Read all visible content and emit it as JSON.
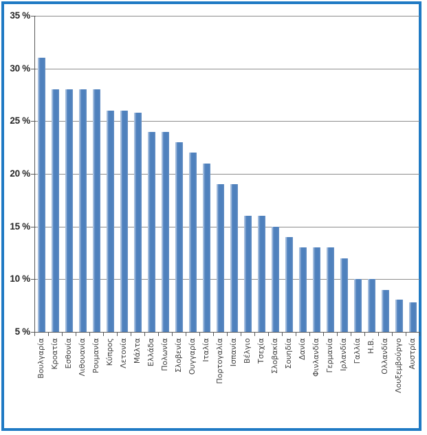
{
  "frame": {
    "border_color": "#1F7AC4",
    "background_color": "#FFFFFF"
  },
  "chart_data": {
    "type": "bar",
    "title": "",
    "xlabel": "",
    "ylabel": "",
    "unit": "%",
    "categories": [
      "Βουλγαρία",
      "Κροατία",
      "Εσθονία",
      "Λιθουανία",
      "Ρουμανία",
      "Κύπρος",
      "Λετονία",
      "Μάλτα",
      "Ελλάδα",
      "Πολωνία",
      "Σλοβενία",
      "Ουγγαρία",
      "Ιταλία",
      "Πορτογαλία",
      "Ισπανία",
      "Βέλγιο",
      "Τσεχία",
      "Σλοβακία",
      "Σουηδία",
      "Δανία",
      "Φινλανδία",
      "Γερμανία",
      "Ιρλανδία",
      "Γαλλία",
      "Η.Β.",
      "Ολλανδία",
      "Λουξεμβούργο",
      "Αυστρία"
    ],
    "values": [
      31,
      28,
      28,
      28,
      28,
      26,
      26,
      25.8,
      24,
      24,
      23,
      22,
      21,
      19,
      19,
      16,
      16,
      15,
      14,
      13,
      13,
      13,
      12,
      10,
      10,
      9,
      8.1,
      7.8
    ],
    "ylim": [
      5,
      35
    ],
    "ytick_step": 5,
    "ytick_labels": [
      "35 %",
      "30 %",
      "25 %",
      "20 %",
      "15 %",
      "10 %",
      "5 %"
    ],
    "grid": true,
    "legend_position": "none",
    "bar_color": "#4F81BD",
    "bar_highlight_color": "#9FBADC",
    "gridline_color": "#8C8C8C",
    "axis_color": "#595959",
    "x_label_color": "#3F3F3F",
    "y_label_color": "#262626"
  }
}
